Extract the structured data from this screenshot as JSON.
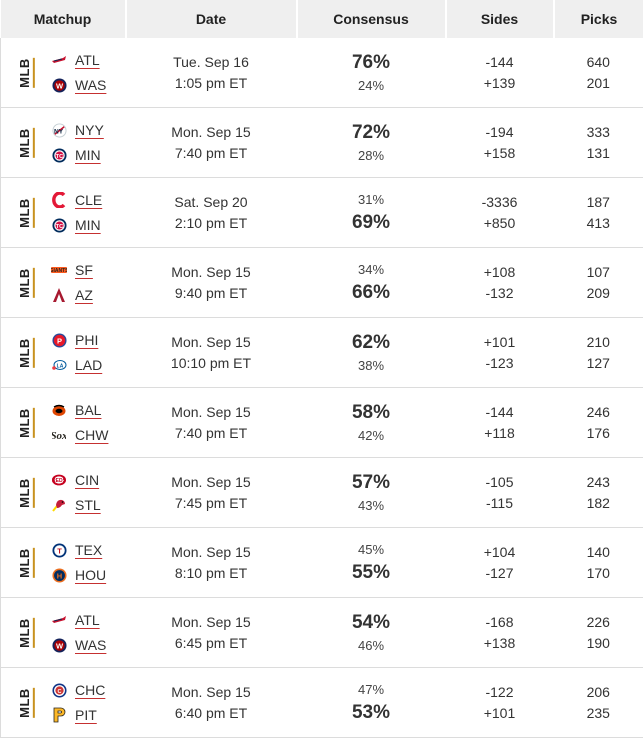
{
  "headers": {
    "matchup": "Matchup",
    "date": "Date",
    "consensus": "Consensus",
    "sides": "Sides",
    "picks": "Picks"
  },
  "games": [
    {
      "league": "MLB",
      "away": {
        "abbr": "ATL",
        "logo": "braves-logo-icon"
      },
      "home": {
        "abbr": "WAS",
        "logo": "nationals-logo-icon"
      },
      "date": "Tue. Sep 16",
      "time": "1:05 pm ET",
      "cons_away": "76%",
      "cons_home": "24%",
      "fav": "away",
      "side_away": "-144",
      "side_home": "+139",
      "picks_away": "640",
      "picks_home": "201"
    },
    {
      "league": "MLB",
      "away": {
        "abbr": "NYY",
        "logo": "yankees-logo-icon"
      },
      "home": {
        "abbr": "MIN",
        "logo": "twins-logo-icon"
      },
      "date": "Mon. Sep 15",
      "time": "7:40 pm ET",
      "cons_away": "72%",
      "cons_home": "28%",
      "fav": "away",
      "side_away": "-194",
      "side_home": "+158",
      "picks_away": "333",
      "picks_home": "131"
    },
    {
      "league": "MLB",
      "away": {
        "abbr": "CLE",
        "logo": "guardians-logo-icon"
      },
      "home": {
        "abbr": "MIN",
        "logo": "twins-logo-icon"
      },
      "date": "Sat. Sep 20",
      "time": "2:10 pm ET",
      "cons_away": "31%",
      "cons_home": "69%",
      "fav": "home",
      "side_away": "-3336",
      "side_home": "+850",
      "picks_away": "187",
      "picks_home": "413"
    },
    {
      "league": "MLB",
      "away": {
        "abbr": "SF",
        "logo": "giants-logo-icon"
      },
      "home": {
        "abbr": "AZ",
        "logo": "diamondbacks-logo-icon"
      },
      "date": "Mon. Sep 15",
      "time": "9:40 pm ET",
      "cons_away": "34%",
      "cons_home": "66%",
      "fav": "home",
      "side_away": "+108",
      "side_home": "-132",
      "picks_away": "107",
      "picks_home": "209"
    },
    {
      "league": "MLB",
      "away": {
        "abbr": "PHI",
        "logo": "phillies-logo-icon"
      },
      "home": {
        "abbr": "LAD",
        "logo": "dodgers-logo-icon"
      },
      "date": "Mon. Sep 15",
      "time": "10:10 pm ET",
      "cons_away": "62%",
      "cons_home": "38%",
      "fav": "away",
      "side_away": "+101",
      "side_home": "-123",
      "picks_away": "210",
      "picks_home": "127"
    },
    {
      "league": "MLB",
      "away": {
        "abbr": "BAL",
        "logo": "orioles-logo-icon"
      },
      "home": {
        "abbr": "CHW",
        "logo": "white-sox-logo-icon"
      },
      "date": "Mon. Sep 15",
      "time": "7:40 pm ET",
      "cons_away": "58%",
      "cons_home": "42%",
      "fav": "away",
      "side_away": "-144",
      "side_home": "+118",
      "picks_away": "246",
      "picks_home": "176"
    },
    {
      "league": "MLB",
      "away": {
        "abbr": "CIN",
        "logo": "reds-logo-icon"
      },
      "home": {
        "abbr": "STL",
        "logo": "cardinals-logo-icon"
      },
      "date": "Mon. Sep 15",
      "time": "7:45 pm ET",
      "cons_away": "57%",
      "cons_home": "43%",
      "fav": "away",
      "side_away": "-105",
      "side_home": "-115",
      "picks_away": "243",
      "picks_home": "182"
    },
    {
      "league": "MLB",
      "away": {
        "abbr": "TEX",
        "logo": "rangers-logo-icon"
      },
      "home": {
        "abbr": "HOU",
        "logo": "astros-logo-icon"
      },
      "date": "Mon. Sep 15",
      "time": "8:10 pm ET",
      "cons_away": "45%",
      "cons_home": "55%",
      "fav": "home",
      "side_away": "+104",
      "side_home": "-127",
      "picks_away": "140",
      "picks_home": "170"
    },
    {
      "league": "MLB",
      "away": {
        "abbr": "ATL",
        "logo": "braves-logo-icon"
      },
      "home": {
        "abbr": "WAS",
        "logo": "nationals-logo-icon"
      },
      "date": "Mon. Sep 15",
      "time": "6:45 pm ET",
      "cons_away": "54%",
      "cons_home": "46%",
      "fav": "away",
      "side_away": "-168",
      "side_home": "+138",
      "picks_away": "226",
      "picks_home": "190"
    },
    {
      "league": "MLB",
      "away": {
        "abbr": "CHC",
        "logo": "cubs-logo-icon"
      },
      "home": {
        "abbr": "PIT",
        "logo": "pirates-logo-icon"
      },
      "date": "Mon. Sep 15",
      "time": "6:40 pm ET",
      "cons_away": "47%",
      "cons_home": "53%",
      "fav": "home",
      "side_away": "-122",
      "side_home": "+101",
      "picks_away": "206",
      "picks_home": "235"
    }
  ]
}
